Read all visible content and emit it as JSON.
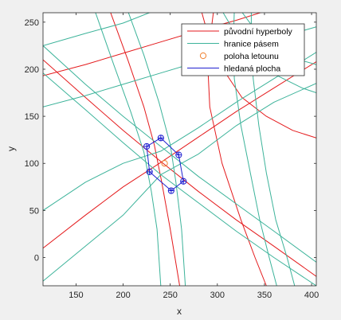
{
  "chart_data": {
    "type": "line",
    "title": "",
    "xlabel": "x",
    "ylabel": "y",
    "xlim": [
      115,
      405
    ],
    "ylim": [
      -30,
      260
    ],
    "xticks": [
      150,
      200,
      250,
      300,
      350,
      400
    ],
    "yticks": [
      0,
      50,
      100,
      150,
      200,
      250
    ],
    "grid": false,
    "legend_position": "top-right",
    "legend": [
      {
        "label": "původní hyperboly",
        "color": "#e41a1c",
        "marker": "line"
      },
      {
        "label": "hranice pásem",
        "color": "#3cb39a",
        "marker": "line"
      },
      {
        "label": "poloha letounu",
        "color": "#f08030",
        "marker": "circle"
      },
      {
        "label": "hledaná plocha",
        "color": "#1f1fd0",
        "marker": "line"
      }
    ],
    "colors": {
      "hyperbola": "#e41a1c",
      "boundary": "#3cb39a",
      "aircraft": "#f08030",
      "area": "#1f1fd0"
    },
    "series": [
      {
        "name": "původní hyperboly",
        "color": "#e41a1c",
        "curves": [
          [
            [
              115,
              210
            ],
            [
              160,
              170
            ],
            [
              200,
              135
            ],
            [
              240,
              102
            ],
            [
              280,
              70
            ],
            [
              320,
              40
            ],
            [
              360,
              12
            ],
            [
              405,
              -20
            ]
          ],
          [
            [
              115,
              193
            ],
            [
              160,
              205
            ],
            [
              200,
              217
            ],
            [
              240,
              229
            ],
            [
              280,
              241
            ],
            [
              320,
              252
            ],
            [
              352,
              262
            ]
          ],
          [
            [
              186,
              262
            ],
            [
              205,
              210
            ],
            [
              222,
              160
            ],
            [
              233,
              120
            ],
            [
              241,
              80
            ],
            [
              250,
              30
            ],
            [
              260,
              -30
            ]
          ],
          [
            [
              296,
              262
            ],
            [
              292,
              230
            ],
            [
              290,
              200
            ],
            [
              292,
              160
            ],
            [
              305,
              100
            ],
            [
              325,
              40
            ],
            [
              340,
              0
            ],
            [
              352,
              -30
            ]
          ],
          [
            [
              283,
              262
            ],
            [
              292,
              230
            ],
            [
              306,
              200
            ],
            [
              326,
              170
            ],
            [
              352,
              150
            ],
            [
              380,
              135
            ],
            [
              405,
              127
            ]
          ],
          [
            [
              115,
              10
            ],
            [
              160,
              45
            ],
            [
              200,
              75
            ],
            [
              240,
              101
            ],
            [
              280,
              128
            ],
            [
              320,
              155
            ],
            [
              360,
              180
            ],
            [
              405,
              208
            ]
          ]
        ]
      },
      {
        "name": "hranice pásem",
        "color": "#3cb39a",
        "curves": [
          [
            [
              115,
              225
            ],
            [
              160,
              184
            ],
            [
              200,
              150
            ],
            [
              240,
              118
            ],
            [
              280,
              86
            ],
            [
              320,
              57
            ],
            [
              360,
              28
            ],
            [
              405,
              -5
            ]
          ],
          [
            [
              115,
              196
            ],
            [
              160,
              157
            ],
            [
              200,
              122
            ],
            [
              240,
              88
            ],
            [
              280,
              58
            ],
            [
              320,
              28
            ],
            [
              360,
              0
            ],
            [
              405,
              -30
            ]
          ],
          [
            [
              170,
              262
            ],
            [
              190,
              205
            ],
            [
              208,
              155
            ],
            [
              222,
              112
            ],
            [
              230,
              70
            ],
            [
              236,
              30
            ],
            [
              240,
              -30
            ]
          ],
          [
            [
              205,
              262
            ],
            [
              222,
              215
            ],
            [
              238,
              165
            ],
            [
              250,
              120
            ],
            [
              256,
              80
            ],
            [
              262,
              30
            ],
            [
              266,
              -30
            ]
          ],
          [
            [
              115,
              160
            ],
            [
              160,
              172
            ],
            [
              200,
              184
            ],
            [
              240,
              196
            ],
            [
              280,
              208
            ],
            [
              320,
              220
            ],
            [
              360,
              232
            ],
            [
              405,
              245
            ]
          ],
          [
            [
              115,
              225
            ],
            [
              160,
              238
            ],
            [
              200,
              249
            ],
            [
              233,
              262
            ]
          ],
          [
            [
              115,
              50
            ],
            [
              160,
              80
            ],
            [
              200,
              100
            ],
            [
              240,
              113
            ],
            [
              280,
              138
            ],
            [
              320,
              165
            ],
            [
              360,
              190
            ],
            [
              405,
              218
            ]
          ],
          [
            [
              115,
              -25
            ],
            [
              160,
              12
            ],
            [
              200,
              45
            ],
            [
              240,
              88
            ],
            [
              280,
              110
            ],
            [
              320,
              140
            ],
            [
              360,
              165
            ],
            [
              405,
              185
            ]
          ],
          [
            [
              318,
              262
            ],
            [
              317,
              230
            ],
            [
              318,
              190
            ],
            [
              325,
              140
            ],
            [
              335,
              90
            ],
            [
              345,
              40
            ],
            [
              355,
              0
            ],
            [
              363,
              -30
            ]
          ],
          [
            [
              336,
              262
            ],
            [
              336,
              230
            ],
            [
              338,
              190
            ],
            [
              344,
              140
            ],
            [
              352,
              90
            ],
            [
              362,
              40
            ],
            [
              374,
              0
            ],
            [
              382,
              -30
            ]
          ],
          [
            [
              305,
              262
            ],
            [
              318,
              240
            ],
            [
              336,
              215
            ],
            [
              360,
              195
            ],
            [
              390,
              180
            ],
            [
              405,
              175
            ]
          ],
          [
            [
              325,
              262
            ],
            [
              340,
              242
            ],
            [
              358,
              225
            ],
            [
              380,
              212
            ],
            [
              405,
              205
            ]
          ]
        ]
      },
      {
        "name": "hledaná plocha",
        "color": "#1f1fd0",
        "closed": true,
        "points": [
          [
            240,
            127
          ],
          [
            259,
            109
          ],
          [
            264,
            81
          ],
          [
            251,
            71
          ],
          [
            228,
            91
          ],
          [
            225,
            118
          ]
        ]
      },
      {
        "name": "poloha letounu",
        "color": "#f08030",
        "points": [
          [
            244,
            100
          ]
        ]
      }
    ]
  }
}
